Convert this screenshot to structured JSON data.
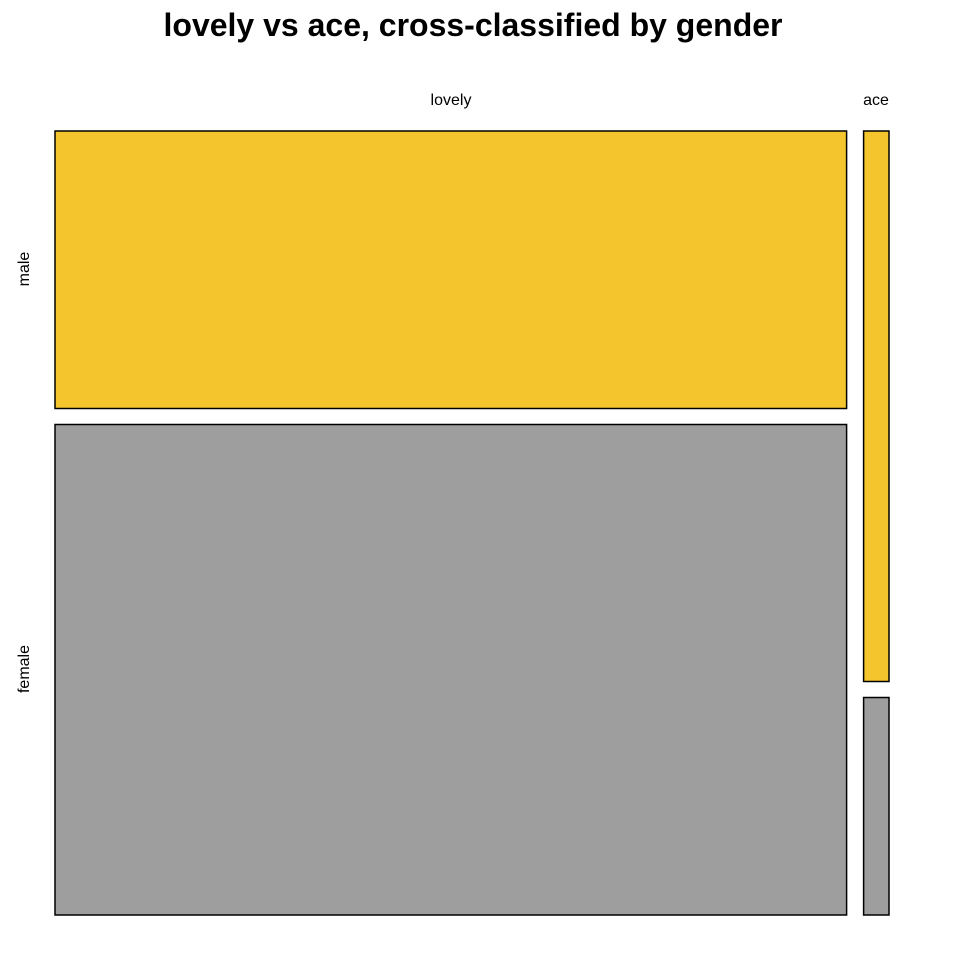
{
  "chart_data": {
    "type": "mosaic",
    "title": "lovely vs ace, cross-classified by gender",
    "columns": [
      "lovely",
      "ace"
    ],
    "rows": [
      "male",
      "female"
    ],
    "column_shares": [
      0.9689,
      0.0311
    ],
    "conditional_row_shares": {
      "lovely": [
        0.3613,
        0.6387
      ],
      "ace": [
        0.7168,
        0.2832
      ]
    },
    "colors": {
      "male": "#F5C52E",
      "female": "#9E9E9E"
    },
    "grid": false,
    "legend": "none"
  }
}
